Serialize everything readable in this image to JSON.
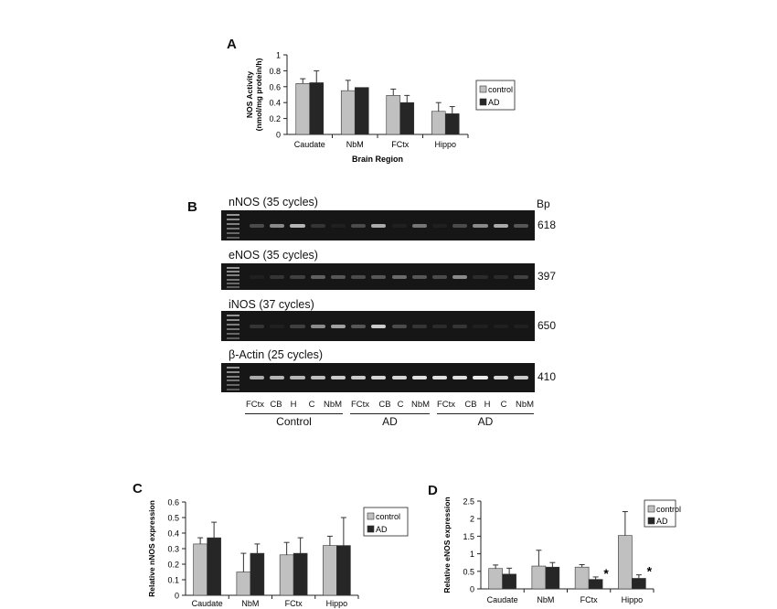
{
  "panels": {
    "A": "A",
    "B": "B",
    "C": "C",
    "D": "D"
  },
  "chart_data": [
    {
      "type": "bar",
      "panel": "A",
      "categories": [
        "Caudate",
        "NbM",
        "FCtx",
        "Hippo"
      ],
      "series": [
        {
          "name": "control",
          "values": [
            0.64,
            0.55,
            0.49,
            0.29
          ],
          "errors": [
            0.06,
            0.13,
            0.08,
            0.11
          ],
          "color": "#c0c0c0"
        },
        {
          "name": "AD",
          "values": [
            0.65,
            0.59,
            0.4,
            0.26
          ],
          "errors": [
            0.15,
            0.0,
            0.09,
            0.09
          ],
          "color": "#262626"
        }
      ],
      "xlabel": "Brain Region",
      "ylabel_line1": "NOS Activity",
      "ylabel_line2": "(nmol/mg protein/h)",
      "ylim": [
        0,
        1
      ],
      "yticks": [
        "0",
        "0.2",
        "0.4",
        "0.6",
        "0.8",
        "1"
      ],
      "legend_position": "right",
      "grid": false
    },
    {
      "type": "bar",
      "panel": "C",
      "categories": [
        "Caudate",
        "NbM",
        "FCtx",
        "Hippo"
      ],
      "series": [
        {
          "name": "control",
          "values": [
            0.33,
            0.15,
            0.26,
            0.32
          ],
          "errors": [
            0.04,
            0.12,
            0.08,
            0.06
          ],
          "color": "#c0c0c0"
        },
        {
          "name": "AD",
          "values": [
            0.37,
            0.27,
            0.27,
            0.32
          ],
          "errors": [
            0.1,
            0.06,
            0.1,
            0.18
          ],
          "color": "#262626"
        }
      ],
      "ylabel": "Relative nNOS expression",
      "ylim": [
        0,
        0.6
      ],
      "yticks": [
        "0",
        "0.1",
        "0.2",
        "0.3",
        "0.4",
        "0.5",
        "0.6"
      ],
      "legend_position": "top-right",
      "grid": false
    },
    {
      "type": "bar",
      "panel": "D",
      "categories": [
        "Caudate",
        "NbM",
        "FCtx",
        "Hippo"
      ],
      "series": [
        {
          "name": "control",
          "values": [
            0.58,
            0.65,
            0.62,
            1.52
          ],
          "errors": [
            0.1,
            0.45,
            0.07,
            0.68
          ],
          "color": "#c0c0c0"
        },
        {
          "name": "AD",
          "values": [
            0.42,
            0.62,
            0.27,
            0.3
          ],
          "errors": [
            0.17,
            0.13,
            0.07,
            0.1
          ],
          "color": "#262626"
        }
      ],
      "ylabel": "Relative eNOS expression",
      "ylim": [
        0,
        2.5
      ],
      "yticks": [
        "0",
        "0.5",
        "1",
        "1.5",
        "2",
        "2.5"
      ],
      "annotations": [
        "*",
        "*"
      ],
      "legend_position": "top-right",
      "grid": false
    }
  ],
  "gel": {
    "bp_header": "Bp",
    "rows": [
      {
        "title": "nNOS (35 cycles)",
        "bp": "618",
        "bands": [
          0.25,
          0.55,
          0.75,
          0.15,
          0.05,
          0.25,
          0.7,
          0.05,
          0.45,
          0.05,
          0.25,
          0.55,
          0.7,
          0.3
        ]
      },
      {
        "title": "eNOS (35 cycles)",
        "bp": "397",
        "bands": [
          0.05,
          0.15,
          0.2,
          0.35,
          0.3,
          0.25,
          0.3,
          0.4,
          0.3,
          0.25,
          0.55,
          0.1,
          0.1,
          0.2
        ]
      },
      {
        "title": "iNOS (37 cycles)",
        "bp": "650",
        "bands": [
          0.15,
          0.05,
          0.2,
          0.55,
          0.65,
          0.3,
          0.85,
          0.25,
          0.15,
          0.1,
          0.15,
          0.05,
          0.05,
          0.05
        ]
      },
      {
        "title": "β-Actin (25 cycles)",
        "bp": "410",
        "bands": [
          0.7,
          0.75,
          0.75,
          0.8,
          0.85,
          0.85,
          0.9,
          0.9,
          0.95,
          0.95,
          0.95,
          1.0,
          0.9,
          0.85
        ]
      }
    ],
    "lanes": [
      "FCtx",
      "CB",
      "H",
      "C",
      "NbM",
      "FCtx",
      "CB",
      "C",
      "NbM",
      "FCtx",
      "CB",
      "H",
      "C",
      "NbM"
    ],
    "groups": [
      {
        "label": "Control"
      },
      {
        "label": "AD"
      },
      {
        "label": "AD"
      }
    ]
  }
}
